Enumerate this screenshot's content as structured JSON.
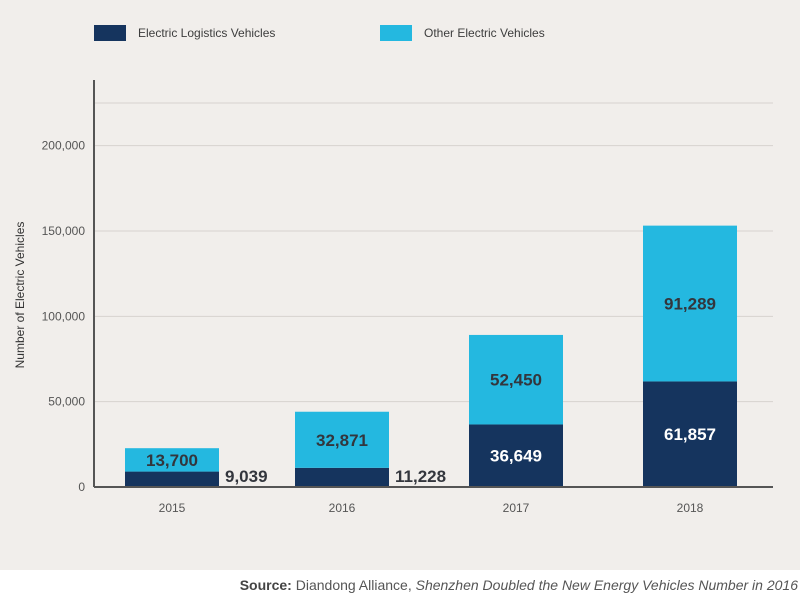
{
  "chart_data": {
    "type": "bar",
    "stacked": true,
    "categories": [
      "2015",
      "2016",
      "2017",
      "2018"
    ],
    "series": [
      {
        "name": "Electric Logistics Vehicles",
        "values": [
          9039,
          11228,
          36649,
          61857
        ],
        "labels": [
          "9,039",
          "11,228",
          "36,649",
          "61,857"
        ],
        "color": "#15345e"
      },
      {
        "name": "Other Electric Vehicles",
        "values": [
          13700,
          32871,
          52450,
          91289
        ],
        "labels": [
          "13,700",
          "32,871",
          "52,450",
          "91,289"
        ],
        "color": "#24b8e0"
      }
    ],
    "ylabel": "Number of Electric Vehicles",
    "xlabel": "",
    "ylim": [
      0,
      225000
    ],
    "yticks": [
      0,
      50000,
      100000,
      150000,
      200000
    ],
    "ytick_labels": [
      "0",
      "50,000",
      "100,000",
      "150,000",
      "200,000"
    ],
    "grid": true,
    "legend_position": "top-left"
  },
  "source": {
    "label": "Source:",
    "publisher": "Diandong Alliance,",
    "title": "Shenzhen Doubled the New Energy Vehicles Number in 2016"
  },
  "colors": {
    "background": "#f1eeeb",
    "gridline": "#d7d3cf",
    "axis": "#555555"
  }
}
